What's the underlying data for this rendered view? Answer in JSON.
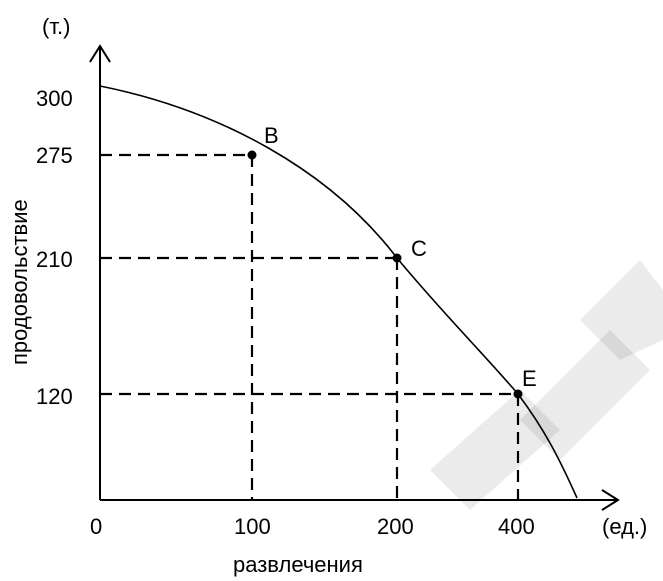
{
  "chart_data": {
    "type": "line",
    "title": "",
    "ylabel": "продовольствие",
    "xlabel": "развлечения",
    "y_unit": "(т.)",
    "x_unit": "(ед.)",
    "origin_label": "0",
    "y_ticks": [
      "300",
      "275",
      "210",
      "120"
    ],
    "x_ticks": [
      "100",
      "200",
      "400"
    ],
    "points": [
      {
        "label": "B",
        "x": "100",
        "y": "275"
      },
      {
        "label": "C",
        "x": "200",
        "y": "210"
      },
      {
        "label": "E",
        "x": "400",
        "y": "120"
      }
    ],
    "grid": false,
    "legend": "none"
  }
}
